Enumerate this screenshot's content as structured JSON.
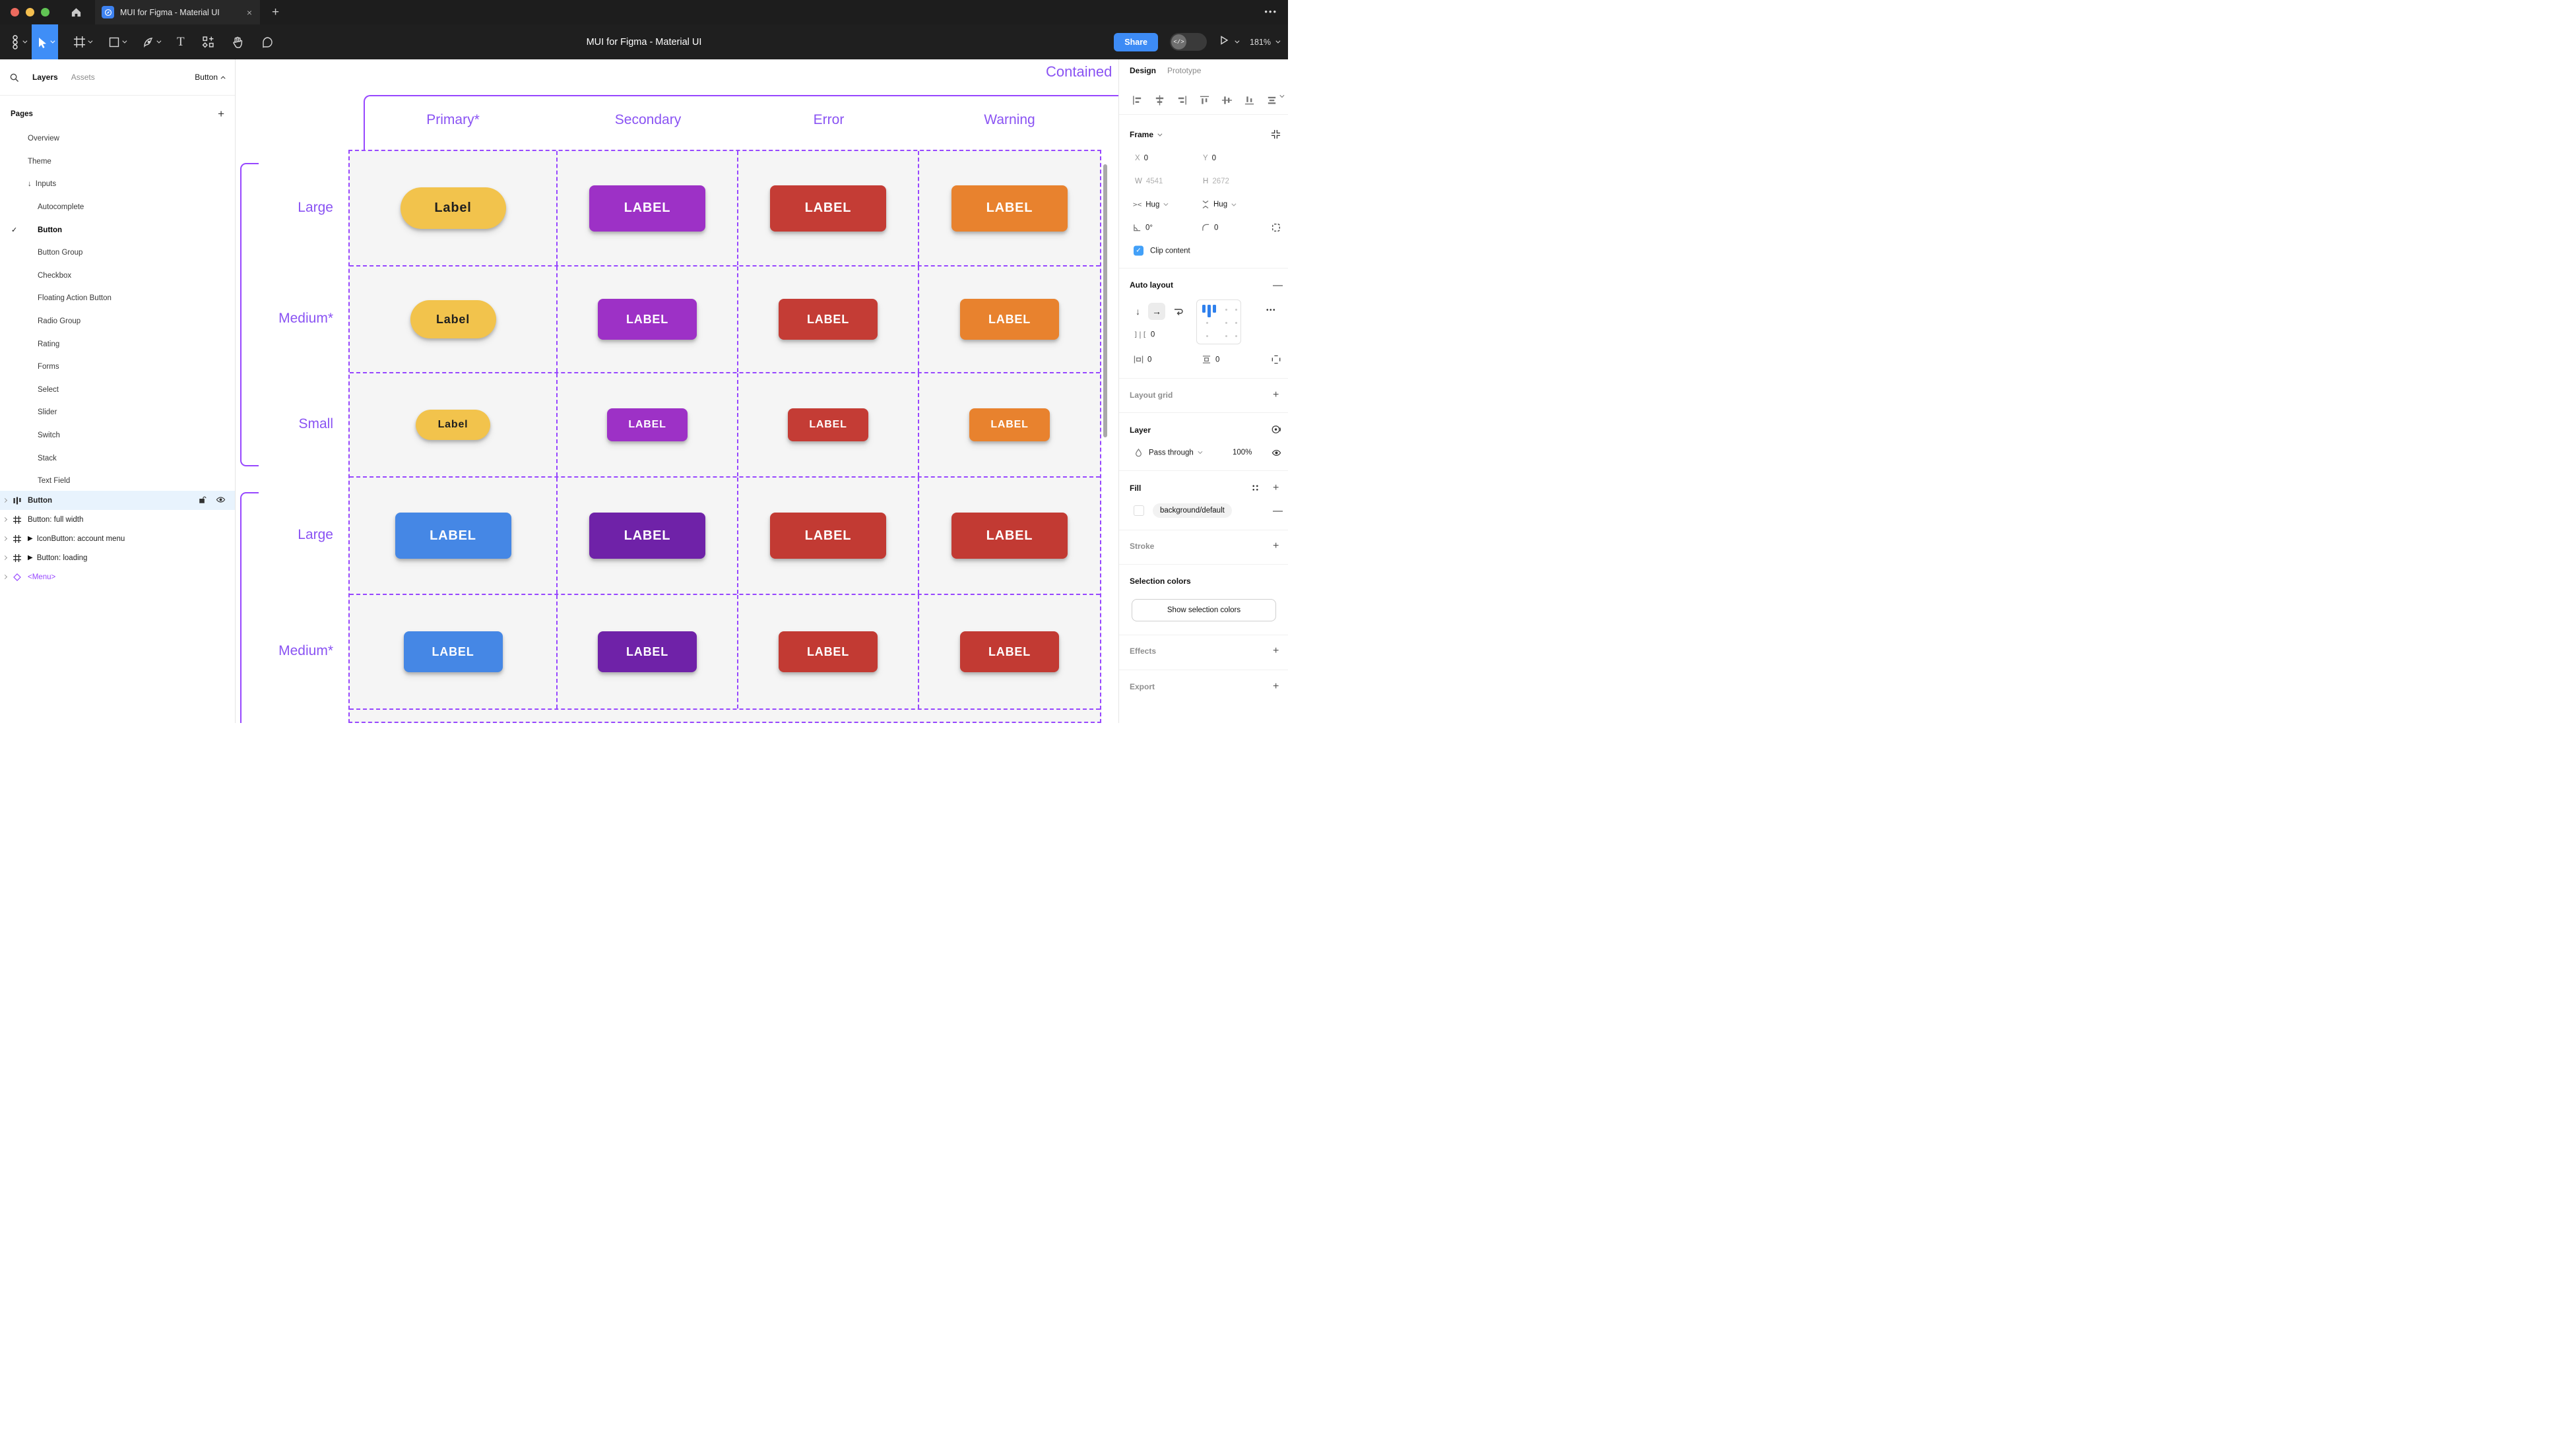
{
  "window": {
    "tab_title": "MUI for Figma - Material UI",
    "close_glyph": "×",
    "new_tab_glyph": "+",
    "more_glyph": "•••",
    "traffic": {
      "red": "#EC6A5E",
      "yellow": "#F4BF4F",
      "green": "#61C454"
    }
  },
  "toolbar": {
    "title": "MUI for Figma - Material UI",
    "share_label": "Share",
    "dev_toggle_label": "</>",
    "zoom_level": "181%",
    "selected_tool": "move",
    "accent": "#3F8EF7",
    "tools": [
      "figma-menu",
      "move",
      "frame",
      "shape",
      "pen",
      "text",
      "widgets",
      "hand",
      "comment"
    ]
  },
  "sidebar": {
    "tabs": {
      "layers": "Layers",
      "assets": "Assets"
    },
    "active_tab": "Layers",
    "selection_label": "Button",
    "pages_header": "Pages",
    "add_page_glyph": "+",
    "check_glyph": "✓",
    "inputs_arrow": "↓",
    "pages": [
      {
        "label": "Overview",
        "level": 0
      },
      {
        "label": "Theme",
        "level": 0
      },
      {
        "label": "Inputs",
        "level": 0,
        "arrow": true
      },
      {
        "label": "Autocomplete",
        "level": 1
      },
      {
        "label": "Button",
        "level": 1,
        "checked": true,
        "bold": true
      },
      {
        "label": "Button Group",
        "level": 1
      },
      {
        "label": "Checkbox",
        "level": 1
      },
      {
        "label": "Floating Action Button",
        "level": 1
      },
      {
        "label": "Radio Group",
        "level": 1
      },
      {
        "label": "Rating",
        "level": 1
      },
      {
        "label": "Forms",
        "level": 1
      },
      {
        "label": "Select",
        "level": 1
      },
      {
        "label": "Slider",
        "level": 1
      },
      {
        "label": "Switch",
        "level": 1
      },
      {
        "label": "Stack",
        "level": 1
      },
      {
        "label": "Text Field",
        "level": 1
      }
    ],
    "layers": [
      {
        "name": "Button",
        "icon": "auto-layout",
        "selected": true
      },
      {
        "name": "Button: full width",
        "icon": "frame"
      },
      {
        "name": "IconButton: account menu",
        "icon": "frame",
        "play": true
      },
      {
        "name": "Button: loading",
        "icon": "frame",
        "play": true
      },
      {
        "name": "<Menu>",
        "icon": "component",
        "purple": true
      }
    ],
    "play_glyph": "▶",
    "component_glyph": "◇"
  },
  "canvas": {
    "frame_title": "Contained",
    "purple": "#9747FF",
    "text_purple": "#8A53F3",
    "columns": [
      "Primary*",
      "Secondary",
      "Error",
      "Warning"
    ],
    "row_sections": [
      {
        "rows": [
          {
            "label": "Large",
            "size": "lg",
            "buttons": [
              {
                "text": "Label",
                "bg": "#F2C34C",
                "fg": "#1F1F1F",
                "shape": "pill"
              },
              {
                "text": "LABEL",
                "bg": "#9D31C6",
                "fg": "#FFFFFF",
                "shape": "rect"
              },
              {
                "text": "LABEL",
                "bg": "#C43C35",
                "fg": "#FFFFFF",
                "shape": "rect"
              },
              {
                "text": "LABEL",
                "bg": "#E8822E",
                "fg": "#FFFFFF",
                "shape": "rect"
              }
            ]
          },
          {
            "label": "Medium*",
            "size": "md",
            "buttons": [
              {
                "text": "Label",
                "bg": "#F2C34C",
                "fg": "#1F1F1F",
                "shape": "pill"
              },
              {
                "text": "LABEL",
                "bg": "#9D31C6",
                "fg": "#FFFFFF",
                "shape": "rect"
              },
              {
                "text": "LABEL",
                "bg": "#C43C35",
                "fg": "#FFFFFF",
                "shape": "rect"
              },
              {
                "text": "LABEL",
                "bg": "#E8822E",
                "fg": "#FFFFFF",
                "shape": "rect"
              }
            ]
          },
          {
            "label": "Small",
            "size": "sm",
            "buttons": [
              {
                "text": "Label",
                "bg": "#F2C34C",
                "fg": "#1F1F1F",
                "shape": "pill"
              },
              {
                "text": "LABEL",
                "bg": "#9D31C6",
                "fg": "#FFFFFF",
                "shape": "rect"
              },
              {
                "text": "LABEL",
                "bg": "#C43C35",
                "fg": "#FFFFFF",
                "shape": "rect"
              },
              {
                "text": "LABEL",
                "bg": "#E8822E",
                "fg": "#FFFFFF",
                "shape": "rect"
              }
            ]
          }
        ]
      },
      {
        "rows": [
          {
            "label": "Large",
            "size": "lg",
            "buttons": [
              {
                "text": "LABEL",
                "bg": "#4587E5",
                "fg": "#FFFFFF",
                "shape": "rect"
              },
              {
                "text": "LABEL",
                "bg": "#6F22A8",
                "fg": "#FFFFFF",
                "shape": "rect"
              },
              {
                "text": "LABEL",
                "bg": "#C23A33",
                "fg": "#FFFFFF",
                "shape": "rect"
              },
              {
                "text": "LABEL",
                "bg": "#C23A33",
                "fg": "#FFFFFF",
                "shape": "rect"
              }
            ]
          },
          {
            "label": "Medium*",
            "size": "md",
            "buttons": [
              {
                "text": "LABEL",
                "bg": "#4587E5",
                "fg": "#FFFFFF",
                "shape": "rect"
              },
              {
                "text": "LABEL",
                "bg": "#6F22A8",
                "fg": "#FFFFFF",
                "shape": "rect"
              },
              {
                "text": "LABEL",
                "bg": "#C23A33",
                "fg": "#FFFFFF",
                "shape": "rect"
              },
              {
                "text": "LABEL",
                "bg": "#C23A33",
                "fg": "#FFFFFF",
                "shape": "rect"
              }
            ]
          }
        ]
      }
    ]
  },
  "inspector": {
    "tabs": {
      "design": "Design",
      "prototype": "Prototype"
    },
    "active_tab": "Design",
    "alignment_icons": [
      "align-left",
      "align-h-center",
      "align-right",
      "align-top",
      "align-v-center",
      "align-bottom",
      "distribute"
    ],
    "frame": {
      "header": "Frame",
      "x_label": "X",
      "x": "0",
      "y_label": "Y",
      "y": "0",
      "w_label": "W",
      "w": "4541",
      "h_label": "H",
      "h": "2672",
      "hug_h": "Hug",
      "hug_v": "Hug",
      "angle": "0°",
      "radius": "0",
      "clip_label": "Clip content",
      "clip_checked": true,
      "check_glyph": "✓",
      "checkbox_color": "#42A0F8"
    },
    "auto_layout": {
      "header": "Auto layout",
      "remove_glyph": "—",
      "down_glyph": "↓",
      "right_glyph": "→",
      "gap": "0",
      "gap_icon": "]|[",
      "pad_h": "0",
      "pad_v": "0",
      "more_glyph": "•••"
    },
    "layout_grid": {
      "header": "Layout grid",
      "add_glyph": "+"
    },
    "layer": {
      "header": "Layer",
      "blend_mode": "Pass through",
      "opacity": "100%"
    },
    "fill": {
      "header": "Fill",
      "swatch": "#FFFFFF",
      "style_name": "background/default",
      "add_glyph": "+",
      "remove_glyph": "—"
    },
    "stroke": {
      "header": "Stroke",
      "add_glyph": "+"
    },
    "selection_colors": {
      "header": "Selection colors",
      "button_label": "Show selection colors"
    },
    "effects": {
      "header": "Effects",
      "add_glyph": "+"
    },
    "export": {
      "header": "Export",
      "add_glyph": "+"
    }
  }
}
